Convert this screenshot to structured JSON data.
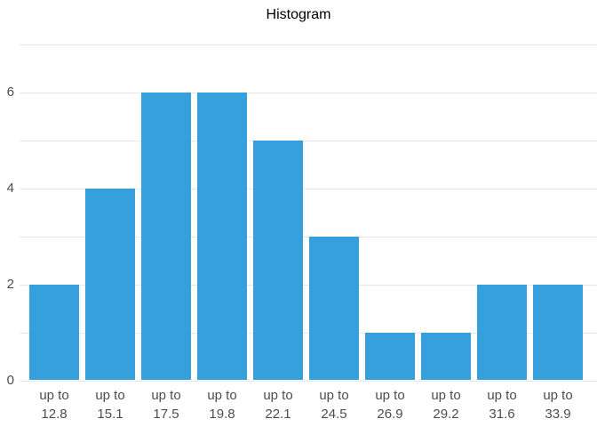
{
  "chart_data": {
    "type": "bar",
    "title": "Histogram",
    "categories": [
      "up to 12.8",
      "up to 15.1",
      "up to 17.5",
      "up to 19.8",
      "up to 22.1",
      "up to 24.5",
      "up to 26.9",
      "up to 29.2",
      "up to 31.6",
      "up to 33.9"
    ],
    "values": [
      2,
      4,
      6,
      6,
      5,
      3,
      1,
      1,
      2,
      2
    ],
    "xlabel": "",
    "ylabel": "",
    "ylim": [
      0,
      7
    ],
    "ytick_values": [
      0,
      2,
      4,
      6
    ],
    "gridline_values": [
      0,
      1,
      2,
      3,
      4,
      5,
      6,
      7
    ],
    "grid": true,
    "legend_position": "none",
    "colors": {
      "bar": "#35a0dc",
      "gridline": "#e7e7e7",
      "tick_label": "#4d4d4d",
      "title": "#000000",
      "background": "#ffffff"
    }
  }
}
